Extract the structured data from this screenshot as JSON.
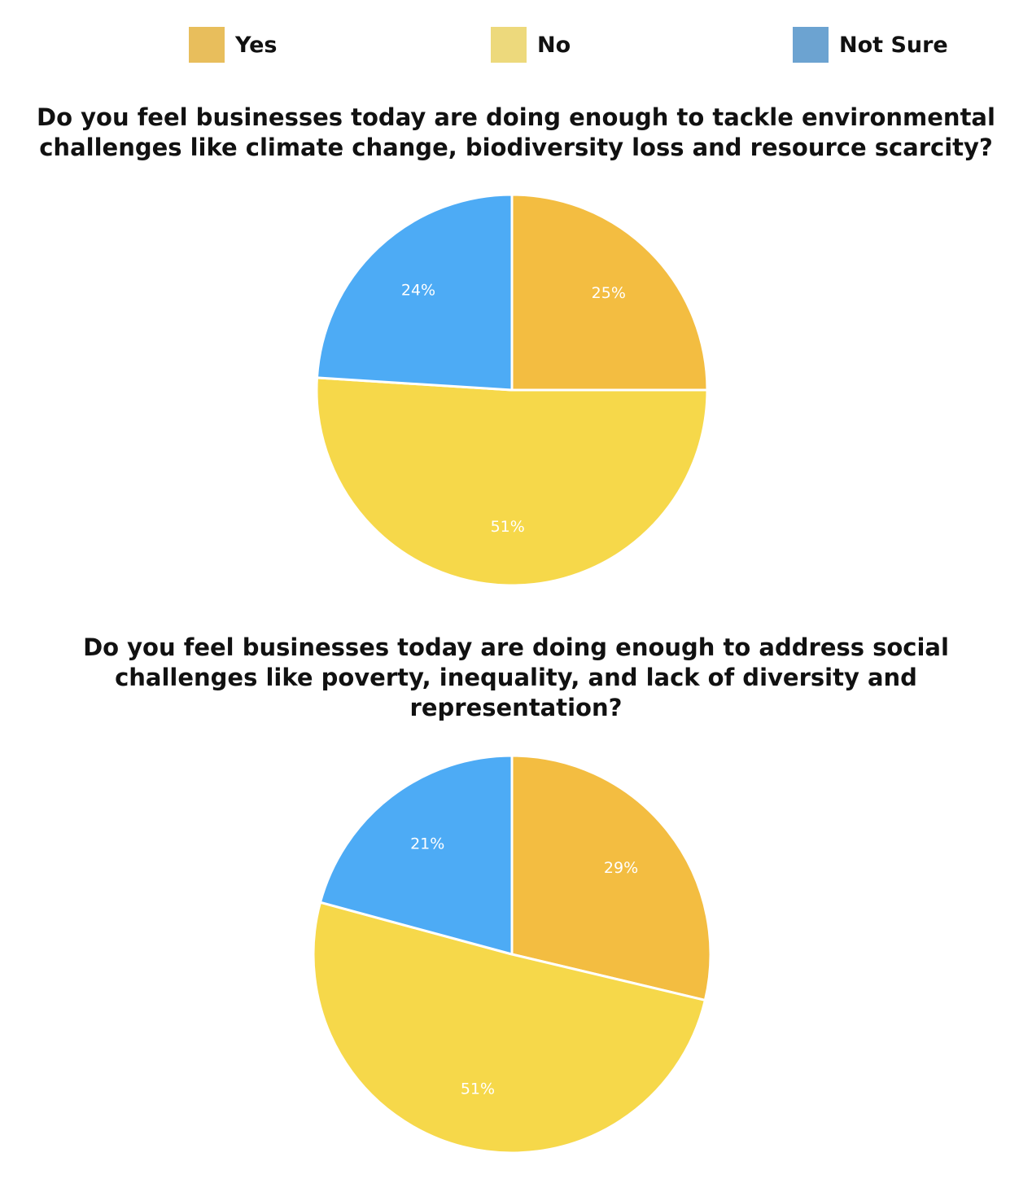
{
  "legend": {
    "items": [
      {
        "label": "Yes",
        "color": "#E8BE5C"
      },
      {
        "label": "No",
        "color": "#EDD97C"
      },
      {
        "label": "Not Sure",
        "color": "#6CA3D1"
      }
    ]
  },
  "chart_data": [
    {
      "type": "pie",
      "title": "Do you feel businesses today are doing enough to tackle environmental challenges like climate change, biodiversity loss and resource scarcity?",
      "categories": [
        "Yes",
        "No",
        "Not Sure"
      ],
      "values": [
        25,
        51,
        24
      ],
      "labels": [
        "25%",
        "51%",
        "24%"
      ],
      "colors": [
        "#F3BD41",
        "#F6D84A",
        "#4DABF5"
      ]
    },
    {
      "type": "pie",
      "title": "Do you feel businesses today are doing enough to address social challenges like poverty, inequality, and lack of diversity and representation?",
      "categories": [
        "Yes",
        "No",
        "Not Sure"
      ],
      "values": [
        29,
        51,
        21
      ],
      "labels": [
        "29%",
        "51%",
        "21%"
      ],
      "colors": [
        "#F3BD41",
        "#F6D84A",
        "#4DABF5"
      ]
    }
  ]
}
